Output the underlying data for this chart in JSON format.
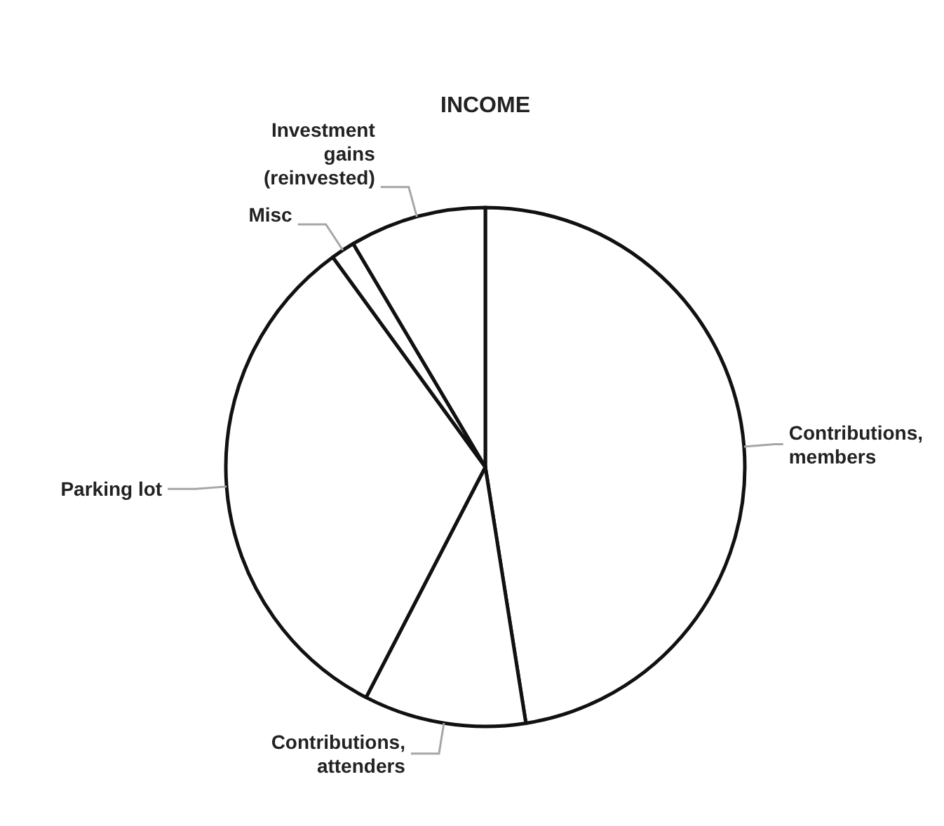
{
  "chart_data": {
    "type": "pie",
    "title": "INCOME",
    "categories": [
      "Contributions, members",
      "Contributions, attenders",
      "Parking lot",
      "Misc",
      "Investment gains (reinvested)"
    ],
    "values": [
      47.5,
      10.1,
      32.4,
      1.5,
      8.5
    ],
    "colors": [
      "#ffffff",
      "#ffffff",
      "#ffffff",
      "#ffffff",
      "#ffffff"
    ]
  }
}
